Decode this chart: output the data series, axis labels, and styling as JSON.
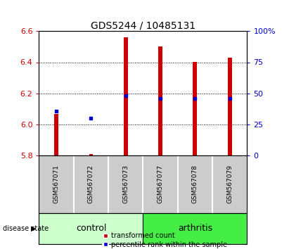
{
  "title": "GDS5244 / 10485131",
  "samples": [
    "GSM567071",
    "GSM567072",
    "GSM567073",
    "GSM567077",
    "GSM567078",
    "GSM567079"
  ],
  "red_values": [
    6.07,
    5.81,
    6.56,
    6.5,
    6.4,
    6.43
  ],
  "blue_percentiles": [
    36,
    30,
    48,
    46,
    46,
    46
  ],
  "y_min": 5.8,
  "y_max": 6.6,
  "y_ticks": [
    5.8,
    6.0,
    6.2,
    6.4,
    6.6
  ],
  "right_y_ticks": [
    0,
    25,
    50,
    75,
    100
  ],
  "right_y_labels": [
    "0",
    "25",
    "50",
    "75",
    "100%"
  ],
  "bar_color": "#cc0000",
  "dot_color": "#0000cc",
  "control_color": "#ccffcc",
  "arthritis_color": "#44ee44",
  "label_box_color": "#cccccc",
  "bar_width": 0.12,
  "base_value": 5.8,
  "legend_red_label": "transformed count",
  "legend_blue_label": "percentile rank within the sample",
  "disease_state_label": "disease state",
  "control_label": "control",
  "arthritis_label": "arthritis",
  "title_fontsize": 10,
  "tick_fontsize": 8,
  "sample_fontsize": 6.5,
  "group_fontsize": 9,
  "legend_fontsize": 7,
  "n_control": 3,
  "n_arthritis": 3
}
